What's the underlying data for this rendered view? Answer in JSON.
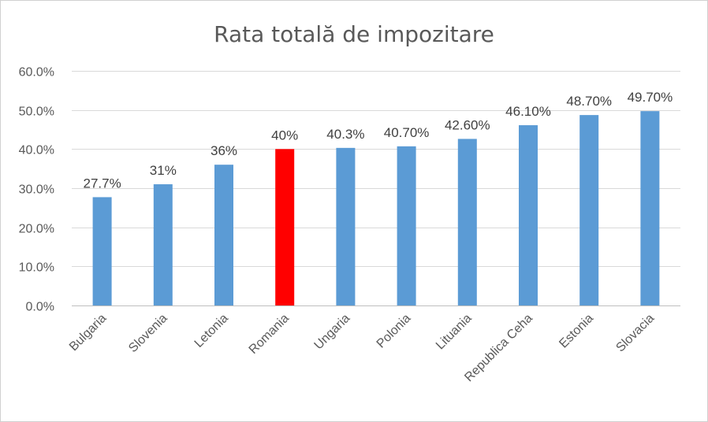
{
  "chart_data": {
    "type": "bar",
    "title": "Rata totală de impozitare",
    "categories": [
      "Bulgaria",
      "Slovenia",
      "Letonia",
      "Romania",
      "Ungaria",
      "Polonia",
      "Lituania",
      "Republica Ceha",
      "Estonia",
      "Slovacia"
    ],
    "values": [
      27.7,
      31,
      36,
      40,
      40.3,
      40.7,
      42.6,
      46.1,
      48.7,
      49.7
    ],
    "data_labels": [
      "27.7%",
      "31%",
      "36%",
      "40%",
      "40.3%",
      "40.70%",
      "42.60%",
      "46.10%",
      "48.70%",
      "49.70%"
    ],
    "ylim": [
      0,
      60
    ],
    "y_ticks": [
      0,
      10,
      20,
      30,
      40,
      50,
      60
    ],
    "y_tick_labels": [
      "0.0%",
      "10.0%",
      "20.0%",
      "30.0%",
      "40.0%",
      "50.0%",
      "60.0%"
    ],
    "grid": true,
    "legend": "none",
    "bar_color": "#5b9bd5",
    "highlight_color": "#ff0000",
    "highlight_category": "Romania"
  }
}
